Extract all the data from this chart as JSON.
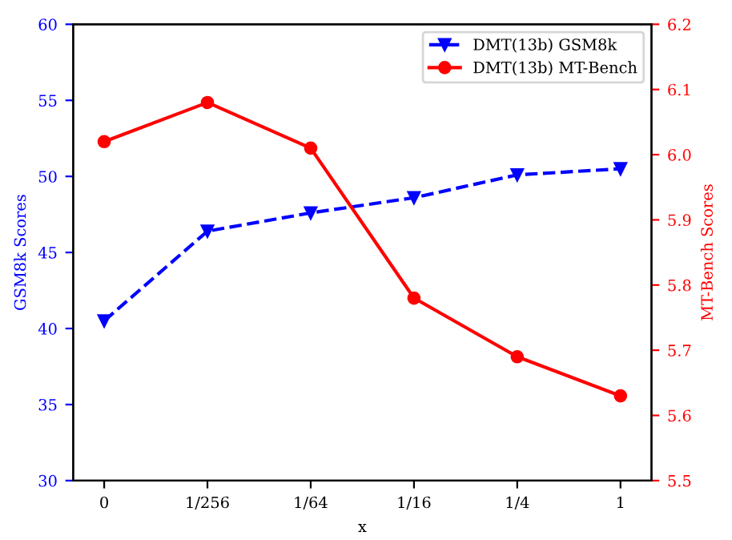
{
  "chart_data": {
    "type": "line",
    "xlabel": "x",
    "ylabel": "GSM8k Scores",
    "y2label": "MT-Bench Scores",
    "categories": [
      "0",
      "1/256",
      "1/64",
      "1/16",
      "1/4",
      "1"
    ],
    "series": [
      {
        "name": "DMT(13b) GSM8k",
        "color": "#0000ff",
        "marker": "triangle",
        "line_style": "dashed",
        "values": [
          40.5,
          46.4,
          47.6,
          48.6,
          50.1,
          50.5
        ]
      },
      {
        "name": "DMT(13b) MT-Bench",
        "color": "#ff0000",
        "marker": "circle",
        "line_style": "solid",
        "axis": "y2",
        "values": [
          6.02,
          6.08,
          6.01,
          5.78,
          5.69,
          5.63
        ]
      }
    ],
    "ylim": [
      30,
      60
    ],
    "yticks": [
      30,
      35,
      40,
      45,
      50,
      55,
      60
    ],
    "y2lim": [
      5.5,
      6.2
    ],
    "y2ticks": [
      {
        "value": 5.5,
        "label": "5.5"
      },
      {
        "value": 5.6,
        "label": "5.6"
      },
      {
        "value": 5.7,
        "label": "5.7"
      },
      {
        "value": 5.8,
        "label": "5.8"
      },
      {
        "value": 5.9,
        "label": "5.9"
      },
      {
        "value": 6.0,
        "label": "6.0"
      },
      {
        "value": 6.1,
        "label": "6.1"
      },
      {
        "value": 6.2,
        "label": "6.2"
      }
    ],
    "legend": "top right",
    "grid": false
  }
}
